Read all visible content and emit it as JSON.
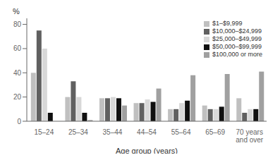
{
  "chart_data": {
    "type": "bar",
    "categories": [
      "15–24",
      "25–34",
      "35–44",
      "44–54",
      "55–64",
      "65–69",
      "70 years\nand over"
    ],
    "series": [
      {
        "name": "$1–$9,999",
        "color": "#c0c0c0",
        "values": [
          40,
          20,
          19,
          15,
          10,
          13,
          19
        ]
      },
      {
        "name": "$10,000–$24,999",
        "color": "#606060",
        "values": [
          75,
          33,
          19,
          15,
          10,
          10,
          7
        ]
      },
      {
        "name": "$25,000–$49,999",
        "color": "#d8d8d8",
        "values": [
          60,
          20,
          20,
          18,
          15,
          10,
          10
        ]
      },
      {
        "name": "$50,000–$99,999",
        "color": "#101010",
        "values": [
          7,
          7,
          19,
          16,
          17,
          12,
          10
        ]
      },
      {
        "name": "$100,000 or more",
        "color": "#a0a0a0",
        "values": [
          0,
          1,
          13,
          27,
          38,
          39,
          41
        ]
      }
    ],
    "xlabel": "Age group (years)",
    "ylabel": "%",
    "ylim": [
      0,
      85
    ],
    "yticks": [
      0,
      20,
      40,
      60,
      80
    ],
    "grid": false,
    "legend": "upper right"
  }
}
